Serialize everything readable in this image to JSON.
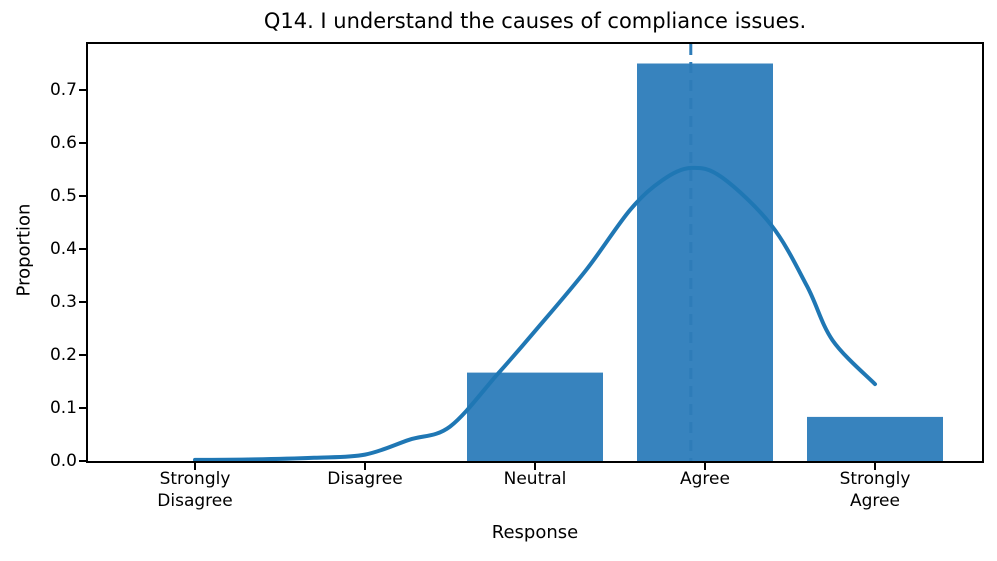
{
  "chart_data": {
    "type": "bar",
    "title": "Q14. I understand the causes of compliance issues.",
    "xlabel": "Response",
    "ylabel": "Proportion",
    "categories": [
      "Strongly\nDisagree",
      "Disagree",
      "Neutral",
      "Agree",
      "Strongly\nAgree"
    ],
    "values": [
      0.0,
      0.0,
      0.1667,
      0.75,
      0.0833
    ],
    "yticks": [
      0.0,
      0.1,
      0.2,
      0.3,
      0.4,
      0.5,
      0.6,
      0.7
    ],
    "ylim": [
      0.0,
      0.787
    ],
    "bar_width_ratio": 0.8,
    "grid": false,
    "legend": null,
    "mean_line": {
      "position": 3.9167,
      "style": "dashed"
    },
    "kde_curve": {
      "x": [
        1.0,
        1.35,
        1.7,
        2.0,
        2.26,
        2.5,
        2.78,
        3.0,
        3.3,
        3.56,
        3.75,
        3.92,
        4.1,
        4.39,
        4.6,
        4.75,
        5.0
      ],
      "y": [
        0.002,
        0.003,
        0.006,
        0.012,
        0.04,
        0.065,
        0.164,
        0.245,
        0.36,
        0.474,
        0.53,
        0.553,
        0.535,
        0.445,
        0.33,
        0.228,
        0.145
      ]
    },
    "colors": {
      "bar": "#3783be",
      "curve": "#1f77b4",
      "mean_line": "#2e7cb8",
      "text": "#000000",
      "spine": "#000000"
    }
  }
}
